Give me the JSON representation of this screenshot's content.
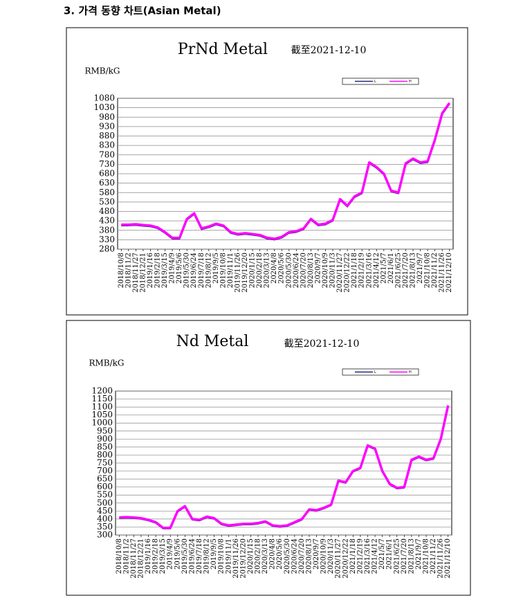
{
  "header": {
    "title": "3. 가격 동향 차트(Asian Metal)"
  },
  "chart_data": [
    {
      "type": "line",
      "title": "PrNd Metal",
      "subtitle": "截至2021-12-10",
      "y_label": "RMB/kG",
      "categories": [
        "2018/10/8",
        "2018/11/2",
        "2018/11/27",
        "2018/12/21",
        "2019/1/16",
        "2019/2/18",
        "2019/3/15",
        "2019/4/9",
        "2019/5/6",
        "2019/5/30",
        "2019/6/24",
        "2019/7/18",
        "2019/8/12",
        "2019/9/5",
        "2019/10/8",
        "2019/11/1",
        "2019/11/26",
        "2019/12/20",
        "2020/1/15",
        "2020/2/18",
        "2020/3/13",
        "2020/4/8",
        "2020/5/6",
        "2020/5/30",
        "2020/6/24",
        "2020/7/20",
        "2020/8/13",
        "2020/9/7",
        "2020/10/9",
        "2020/11/3",
        "2020/11/27",
        "2020/12/22",
        "2021/1/18",
        "2021/2/19",
        "2021/3/16",
        "2021/4/12",
        "2021/5/7",
        "2021/6/1",
        "2021/6/25",
        "2021/7/20",
        "2021/8/13",
        "2021/9/7",
        "2021/10/8",
        "2021/11/2",
        "2021/11/26",
        "2021/12/10"
      ],
      "series": [
        {
          "name": "L",
          "color": "#1f2a7a",
          "values": [
            405,
            405,
            407,
            403,
            400,
            390,
            365,
            335,
            335,
            435,
            465,
            385,
            395,
            410,
            400,
            365,
            355,
            360,
            355,
            350,
            335,
            330,
            340,
            365,
            370,
            385,
            435,
            405,
            410,
            430,
            540,
            505,
            555,
            575,
            735,
            710,
            675,
            585,
            575,
            730,
            755,
            735,
            740,
            855,
            995,
            1050
          ]
        },
        {
          "name": "H",
          "color": "#ff00ff",
          "values": [
            410,
            410,
            412,
            408,
            405,
            395,
            370,
            340,
            340,
            440,
            470,
            390,
            400,
            415,
            405,
            370,
            360,
            365,
            360,
            355,
            340,
            335,
            345,
            370,
            375,
            390,
            440,
            410,
            415,
            435,
            545,
            510,
            560,
            580,
            740,
            715,
            680,
            590,
            580,
            735,
            760,
            740,
            745,
            860,
            1000,
            1055
          ]
        }
      ],
      "ylim": [
        280,
        1080
      ],
      "yticks": [
        280,
        330,
        380,
        430,
        480,
        530,
        580,
        630,
        680,
        730,
        780,
        830,
        880,
        930,
        980,
        1030,
        1080
      ],
      "grid": true
    },
    {
      "type": "line",
      "title": "Nd Metal",
      "subtitle": "截至2021-12-10",
      "y_label": "RMB/kG",
      "categories": [
        "2018/10/8",
        "2018/11/2",
        "2018/11/27",
        "2018/12/21",
        "2019/1/16",
        "2019/2/18",
        "2019/3/15",
        "2019/4/9",
        "2019/5/6",
        "2019/5/30",
        "2019/6/24",
        "2019/7/18",
        "2019/8/12",
        "2019/9/5",
        "2019/10/8",
        "2019/11/1",
        "2019/11/26",
        "2019/12/20",
        "2020/1/15",
        "2020/2/18",
        "2020/3/13",
        "2020/4/8",
        "2020/5/6",
        "2020/5/30",
        "2020/6/24",
        "2020/7/20",
        "2020/8/13",
        "2020/9/7",
        "2020/10/9",
        "2020/11/3",
        "2020/11/27",
        "2020/12/22",
        "2021/1/18",
        "2021/2/19",
        "2021/3/16",
        "2021/4/12",
        "2021/5/7",
        "2021/6/1",
        "2021/6/25",
        "2021/7/20",
        "2021/8/13",
        "2021/9/7",
        "2021/10/8",
        "2021/11/2",
        "2021/11/26",
        "2021/12/10"
      ],
      "series": [
        {
          "name": "L",
          "color": "#1f2a7a",
          "values": [
            405,
            407,
            405,
            400,
            390,
            375,
            340,
            340,
            445,
            475,
            395,
            390,
            410,
            400,
            365,
            355,
            360,
            365,
            365,
            370,
            380,
            355,
            350,
            355,
            375,
            395,
            455,
            450,
            465,
            485,
            635,
            625,
            695,
            715,
            855,
            835,
            695,
            615,
            590,
            595,
            765,
            785,
            765,
            775,
            895,
            1100
          ]
        },
        {
          "name": "H",
          "color": "#ff00ff",
          "values": [
            410,
            412,
            410,
            405,
            395,
            380,
            345,
            345,
            450,
            480,
            400,
            395,
            415,
            405,
            370,
            360,
            365,
            370,
            370,
            375,
            385,
            360,
            355,
            360,
            380,
            400,
            460,
            455,
            470,
            490,
            640,
            630,
            700,
            720,
            860,
            840,
            700,
            620,
            595,
            600,
            770,
            790,
            770,
            780,
            900,
            1110
          ]
        }
      ],
      "ylim": [
        300,
        1200
      ],
      "yticks": [
        300,
        350,
        400,
        450,
        500,
        550,
        600,
        650,
        700,
        750,
        800,
        850,
        900,
        950,
        1000,
        1050,
        1100,
        1150,
        1200
      ],
      "grid": true
    }
  ]
}
